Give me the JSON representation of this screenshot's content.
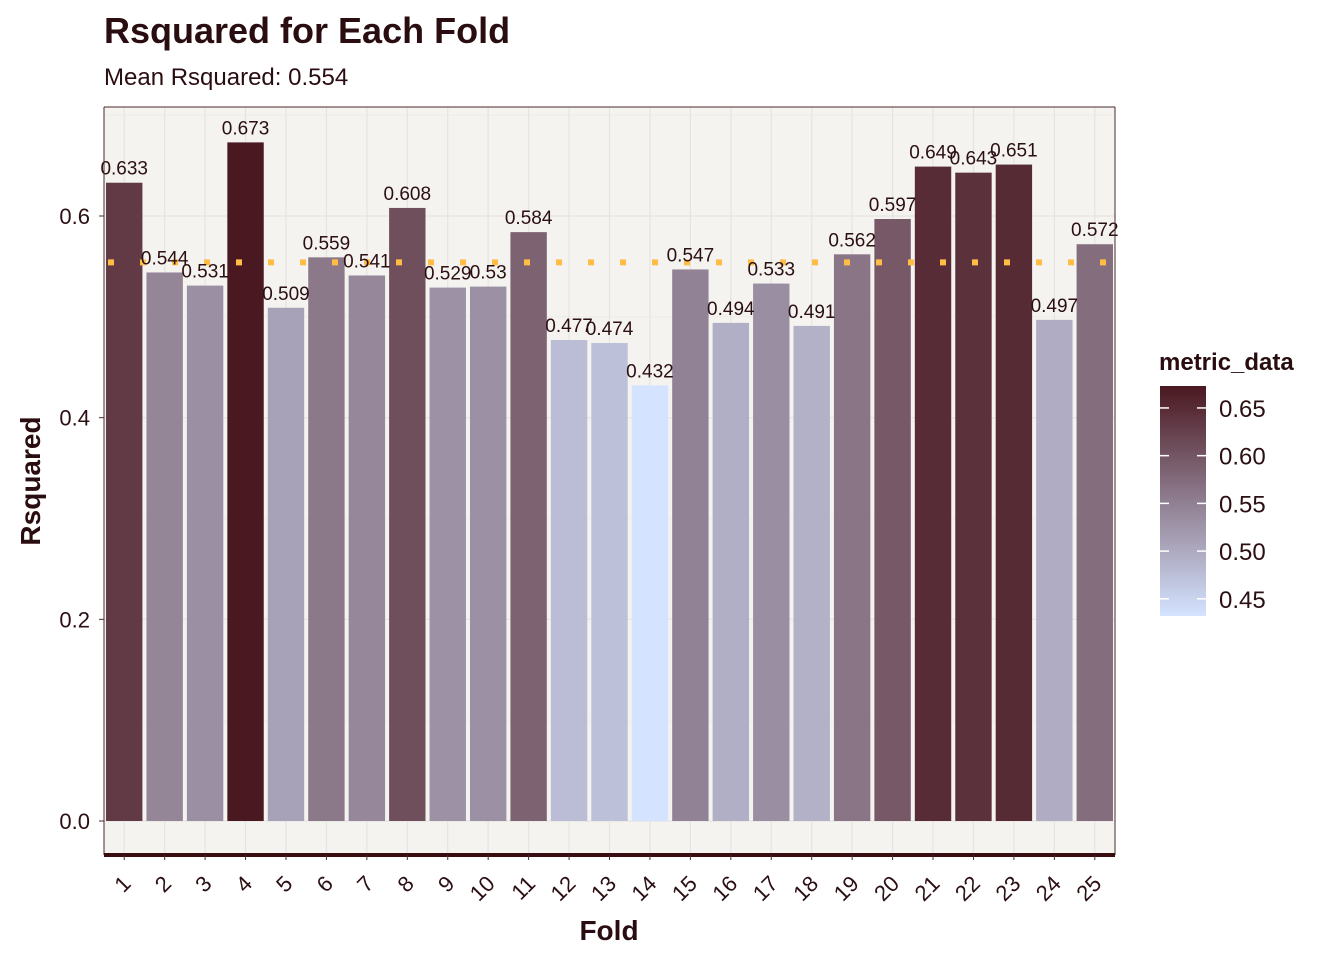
{
  "chart_data": {
    "type": "bar",
    "title": "Rsquared for Each Fold",
    "subtitle": "Mean Rsquared: 0.554",
    "xlabel": "Fold",
    "ylabel": "Rsquared",
    "categories": [
      "1",
      "2",
      "3",
      "4",
      "5",
      "6",
      "7",
      "8",
      "9",
      "10",
      "11",
      "12",
      "13",
      "14",
      "15",
      "16",
      "17",
      "18",
      "19",
      "20",
      "21",
      "22",
      "23",
      "24",
      "25"
    ],
    "values": [
      0.633,
      0.544,
      0.531,
      0.673,
      0.509,
      0.559,
      0.541,
      0.608,
      0.529,
      0.53,
      0.584,
      0.477,
      0.474,
      0.432,
      0.547,
      0.494,
      0.533,
      0.491,
      0.562,
      0.597,
      0.649,
      0.643,
      0.651,
      0.497,
      0.572
    ],
    "value_labels": [
      "0.633",
      "0.544",
      "0.531",
      "0.673",
      "0.509",
      "0.559",
      "0.541",
      "0.608",
      "0.529",
      "0.53",
      "0.584",
      "0.477",
      "0.474",
      "0.432",
      "0.547",
      "0.494",
      "0.533",
      "0.491",
      "0.562",
      "0.597",
      "0.649",
      "0.643",
      "0.651",
      "0.497",
      "0.572"
    ],
    "mean_line": 0.554,
    "ylim": [
      -0.035,
      0.7
    ],
    "yticks": [
      0.0,
      0.2,
      0.4,
      0.6
    ],
    "ytick_labels": [
      "0.0",
      "0.2",
      "0.4",
      "0.6"
    ],
    "grid": true,
    "legend": {
      "title": "metric_data",
      "placement": "right",
      "range": [
        0.432,
        0.673
      ],
      "ticks": [
        0.45,
        0.5,
        0.55,
        0.6,
        0.65
      ],
      "tick_labels": [
        "0.45",
        "0.50",
        "0.55",
        "0.60",
        "0.65"
      ]
    },
    "colors": {
      "low": "#d4e3ff",
      "high": "#4a1820",
      "mean_line": "#ffbd45",
      "panel_background": "#f4f3f0",
      "axis_line": "#3a0c10"
    }
  }
}
